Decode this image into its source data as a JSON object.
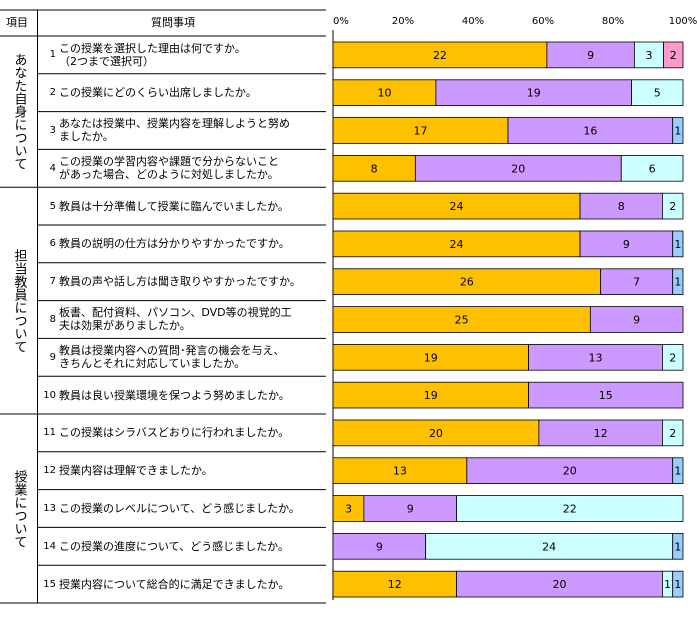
{
  "header": {
    "item": "項目",
    "question": "質問事項"
  },
  "groups": [
    {
      "label": "あなた自身について"
    },
    {
      "label": "担当教員について"
    },
    {
      "label": "授業について"
    }
  ],
  "questions": [
    {
      "num": "1",
      "lines": [
        "この授業を選択した理由は何ですか。",
        "（2つまで選択可）"
      ]
    },
    {
      "num": "2",
      "lines": [
        "この授業にどのくらい出席しましたか。"
      ]
    },
    {
      "num": "3",
      "lines": [
        "あなたは授業中、授業内容を理解しようと努め",
        "ましたか。"
      ]
    },
    {
      "num": "4",
      "lines": [
        "この授業の学習内容や課題で分からないこと",
        "があった場合、どのように対処しましたか。"
      ]
    },
    {
      "num": "5",
      "lines": [
        "教員は十分準備して授業に臨んでいましたか。"
      ]
    },
    {
      "num": "6",
      "lines": [
        "教員の説明の仕方は分かりやすかったですか。"
      ]
    },
    {
      "num": "7",
      "lines": [
        "教員の声や話し方は聞き取りやすかったですか。"
      ]
    },
    {
      "num": "8",
      "lines": [
        "板書、配付資料、パソコン、DVD等の視覚的工",
        "夫は効果がありましたか。"
      ]
    },
    {
      "num": "9",
      "lines": [
        "教員は授業内容への質問･発言の機会を与え、",
        "きちんとそれに対応していましたか。"
      ]
    },
    {
      "num": "10",
      "lines": [
        "教員は良い授業環境を保つよう努めましたか。"
      ]
    },
    {
      "num": "11",
      "lines": [
        "この授業はシラバスどおりに行われましたか。"
      ]
    },
    {
      "num": "12",
      "lines": [
        "授業内容は理解できましたか。"
      ]
    },
    {
      "num": "13",
      "lines": [
        "この授業のレベルについて、どう感じましたか。"
      ]
    },
    {
      "num": "14",
      "lines": [
        "この授業の進度について、どう感じましたか。"
      ]
    },
    {
      "num": "15",
      "lines": [
        "授業内容について総合的に満足できましたか。"
      ]
    }
  ],
  "colors": {
    "s1": "#ffc000",
    "s2": "#cc99ff",
    "s3": "#ccffff",
    "s4": "#ff99cc",
    "s5": "#99ccff"
  },
  "chart_data": {
    "type": "bar",
    "orientation": "horizontal",
    "stacked": true,
    "normalized_percent": true,
    "xlim": [
      0,
      100
    ],
    "xticks": [
      "0%",
      "20%",
      "40%",
      "60%",
      "80%",
      "100%"
    ],
    "categories": [
      "1",
      "2",
      "3",
      "4",
      "5",
      "6",
      "7",
      "8",
      "9",
      "10",
      "11",
      "12",
      "13",
      "14",
      "15"
    ],
    "series": [
      {
        "name": "s1",
        "values": [
          22,
          10,
          17,
          8,
          24,
          24,
          26,
          25,
          19,
          19,
          20,
          13,
          3,
          0,
          12
        ]
      },
      {
        "name": "s2",
        "values": [
          9,
          19,
          16,
          20,
          8,
          9,
          7,
          9,
          13,
          15,
          12,
          20,
          9,
          9,
          20
        ]
      },
      {
        "name": "s3",
        "values": [
          3,
          5,
          0,
          6,
          2,
          0,
          0,
          0,
          2,
          0,
          2,
          0,
          22,
          24,
          1
        ]
      },
      {
        "name": "s4",
        "values": [
          2,
          0,
          0,
          0,
          0,
          0,
          0,
          0,
          0,
          0,
          0,
          0,
          0,
          0,
          0
        ]
      },
      {
        "name": "s5",
        "values": [
          0,
          0,
          1,
          0,
          0,
          1,
          1,
          0,
          0,
          0,
          0,
          1,
          0,
          1,
          1
        ]
      }
    ],
    "title": "",
    "xlabel": "",
    "ylabel": "",
    "legend": "none"
  }
}
